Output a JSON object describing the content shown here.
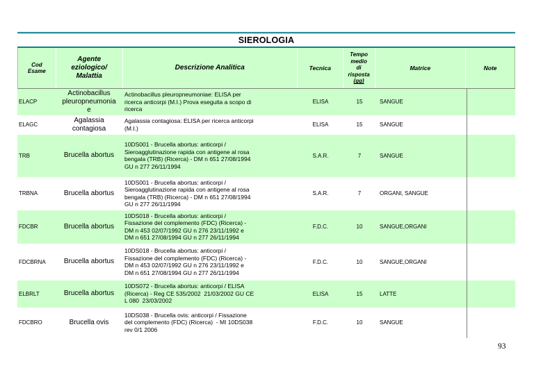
{
  "title": "SIEROLOGIA",
  "page_number": "93",
  "colors": {
    "row_highlight_green": "#ccffcc",
    "rule_teal": "#0f7e8d",
    "separator_gray": "#7f7f7f"
  },
  "table": {
    "headers": [
      {
        "key": "cod",
        "label": "Cod\nEsame"
      },
      {
        "key": "agente",
        "label": "Agente\neziologico/\nMalattia"
      },
      {
        "key": "descrizione",
        "label": "Descrizione Analitica"
      },
      {
        "key": "tecnica",
        "label": "Tecnica"
      },
      {
        "key": "tempo",
        "label": "Tempo\nmedio\ndi\nrisposta",
        "label_sub": "(gg)"
      },
      {
        "key": "matrice",
        "label": "Matrice"
      },
      {
        "key": "note",
        "label": "Note"
      }
    ],
    "rows": [
      {
        "cod": "ELACP",
        "agente": "Actinobacillus\npleuropneumonia\ne",
        "descrizione": "Actinobacillus pleuropneumoniae: ELISA per\nricerca anticorpi (M.I.) Prova eseguita a scopo di\nricerca",
        "tecnica": "ELISA",
        "tempo": "15",
        "matrice": "SANGUE",
        "note": ""
      },
      {
        "cod": "ELAGC",
        "agente": "Agalassia\ncontagiosa",
        "descrizione": "Agalassia contagiosa: ELISA per ricerca anticorpi\n(M.I.)",
        "tecnica": "ELISA",
        "tempo": "15",
        "matrice": "SANGUE",
        "note": ""
      },
      {
        "cod": "TRB",
        "agente": "Brucella abortus",
        "descrizione": "10DS001 - Brucella abortus: anticorpi /\nSieroagglutinazione rapida con antigene al rosa\nbengala (TRB) (Ricerca) - DM n 651 27/08/1994\nGU n 277 26/11/1994",
        "tecnica": "S.A.R.",
        "tempo": "7",
        "matrice": "SANGUE",
        "note": ""
      },
      {
        "cod": "TRBNA",
        "agente": "Brucella abortus",
        "descrizione": "10DS001 - Brucella abortus: anticorpi /\nSieroagglutinazione rapida con antigene al rosa\nbengala (TRB) (Ricerca) - DM n 651 27/08/1994\nGU n 277 26/11/1994",
        "tecnica": "S.A.R.",
        "tempo": "7",
        "matrice": "ORGANI, SANGUE",
        "note": ""
      },
      {
        "cod": "FDCBR",
        "agente": "Brucella abortus",
        "descrizione": "10DS018 - Brucella abortus: anticorpi /\nFissazione del complemento (FDC) (Ricerca) -\nDM n 453 02/07/1992 GU n 276 23/11/1992 e\nDM n 651 27/08/1994 GU n 277 26/11/1994",
        "tecnica": "F.D.C.",
        "tempo": "10",
        "matrice": "SANGUE,ORGANI",
        "note": ""
      },
      {
        "cod": "FDCBRNA",
        "agente": "Brucella abortus",
        "descrizione": "10DS018 - Brucella abortus: anticorpi /\nFissazione del complemento (FDC) (Ricerca) -\nDM n 453 02/07/1992 GU n 276 23/11/1992 e\nDM n 651 27/08/1994 GU n 277 26/11/1994",
        "tecnica": "F.D.C.",
        "tempo": "10",
        "matrice": "SANGUE,ORGANI",
        "note": ""
      },
      {
        "cod": "ELBRLT",
        "agente": "Brucella abortus",
        "descrizione": "10DS072 - Brucella abortus: anticorpi / ELISA\n(Ricerca) - Reg CE 535/2002  21/03/2002 GU CE\nL 080  23/03/2002",
        "tecnica": "ELISA",
        "tempo": "15",
        "matrice": "LATTE",
        "note": ""
      },
      {
        "cod": "FDCBRO",
        "agente": "Brucella ovis",
        "descrizione": "10DS038 - Brucella ovis: anticorpi / Fissazione\ndel complemento (FDC) (Ricerca)  - MI 10DS038\nrev 0/1 2006",
        "tecnica": "F.D.C.",
        "tempo": "10",
        "matrice": "SANGUE",
        "note": ""
      }
    ]
  }
}
